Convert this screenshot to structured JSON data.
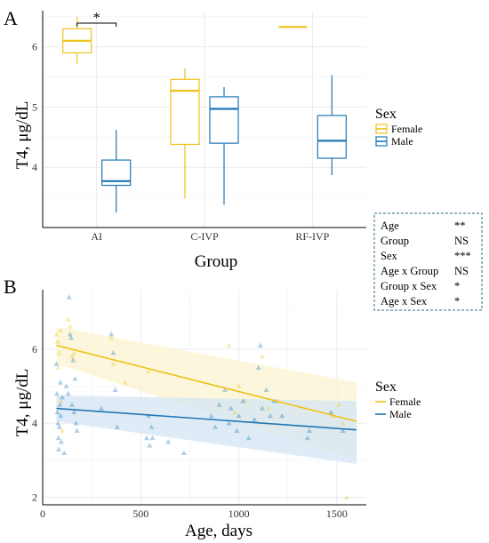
{
  "colors": {
    "female": "#EFC21B",
    "male": "#1F77B4",
    "grid": "#EBEBEB",
    "ci_female": "#FBF4D0",
    "ci_male": "#D4E6F4",
    "stats_border": "#2E6E8A"
  },
  "chart_data": [
    {
      "type": "box",
      "panel": "A",
      "xlabel": "Group",
      "ylabel": "T4, μg/dL",
      "categories": [
        "AI",
        "C-IVP",
        "RF-IVP"
      ],
      "ylim": [
        3.0,
        6.6
      ],
      "yticks": [
        "4",
        "5",
        "6"
      ],
      "legend": {
        "title": "Sex",
        "position": "right",
        "entries": [
          "Female",
          "Male"
        ]
      },
      "series": [
        {
          "name": "Female",
          "boxes": [
            {
              "category": "AI",
              "min": 5.72,
              "q1": 5.9,
              "median": 6.1,
              "q3": 6.3,
              "max": 6.5
            },
            {
              "category": "C-IVP",
              "min": 3.48,
              "q1": 4.38,
              "median": 5.27,
              "q3": 5.46,
              "max": 5.64
            },
            {
              "category": "RF-IVP",
              "min": 6.33,
              "q1": 6.33,
              "median": 6.33,
              "q3": 6.33,
              "max": 6.33
            }
          ]
        },
        {
          "name": "Male",
          "boxes": [
            {
              "category": "AI",
              "min": 3.25,
              "q1": 3.7,
              "median": 3.77,
              "q3": 4.12,
              "max": 4.62
            },
            {
              "category": "C-IVP",
              "min": 3.38,
              "q1": 4.4,
              "median": 4.97,
              "q3": 5.17,
              "max": 5.33
            },
            {
              "category": "RF-IVP",
              "min": 3.87,
              "q1": 4.15,
              "median": 4.44,
              "q3": 4.86,
              "max": 5.53
            }
          ]
        }
      ],
      "annotations": [
        {
          "text": "*",
          "between": "AI Female vs AI Male"
        }
      ]
    },
    {
      "type": "scatter",
      "panel": "B",
      "xlabel": "Age, days",
      "ylabel": "T4, μg/dL",
      "xlim": [
        0,
        1650
      ],
      "ylim": [
        1.8,
        7.6
      ],
      "xticks": [
        "0",
        "500",
        "1000",
        "1500"
      ],
      "yticks": [
        "2",
        "4",
        "6"
      ],
      "legend": {
        "title": "Sex",
        "position": "right",
        "entries": [
          "Female",
          "Male"
        ]
      },
      "trend": [
        {
          "name": "Female",
          "x": [
            70,
            1600
          ],
          "y": [
            6.1,
            4.05
          ],
          "ci_upper": [
            6.6,
            5.1
          ],
          "ci_lower": [
            5.6,
            3.0
          ]
        },
        {
          "name": "Male",
          "x": [
            70,
            1600
          ],
          "y": [
            4.4,
            3.82
          ],
          "ci_upper": [
            4.75,
            4.6
          ],
          "ci_lower": [
            4.05,
            2.9
          ]
        }
      ],
      "series": [
        {
          "name": "Female",
          "points": [
            [
              70,
              6.4
            ],
            [
              75,
              6.2
            ],
            [
              80,
              5.5
            ],
            [
              85,
              5.9
            ],
            [
              90,
              6.5
            ],
            [
              95,
              4.6
            ],
            [
              100,
              3.8
            ],
            [
              130,
              6.8
            ],
            [
              140,
              6.6
            ],
            [
              150,
              5.8
            ],
            [
              160,
              5.9
            ],
            [
              350,
              6.3
            ],
            [
              360,
              5.6
            ],
            [
              420,
              5.1
            ],
            [
              540,
              5.4
            ],
            [
              950,
              6.1
            ],
            [
              980,
              4.3
            ],
            [
              1000,
              5.0
            ],
            [
              1030,
              4.6
            ],
            [
              1120,
              5.8
            ],
            [
              1150,
              4.4
            ],
            [
              1200,
              4.6
            ],
            [
              1480,
              4.2
            ],
            [
              1510,
              4.5
            ],
            [
              1530,
              4.0
            ],
            [
              1550,
              2.0
            ]
          ]
        },
        {
          "name": "Male",
          "points": [
            [
              70,
              5.6
            ],
            [
              72,
              4.8
            ],
            [
              75,
              4.3
            ],
            [
              78,
              4.0
            ],
            [
              80,
              3.6
            ],
            [
              82,
              3.3
            ],
            [
              85,
              3.9
            ],
            [
              88,
              4.5
            ],
            [
              90,
              5.1
            ],
            [
              92,
              4.2
            ],
            [
              95,
              3.5
            ],
            [
              100,
              4.7
            ],
            [
              110,
              3.2
            ],
            [
              120,
              5.0
            ],
            [
              130,
              4.8
            ],
            [
              135,
              7.4
            ],
            [
              140,
              6.4
            ],
            [
              145,
              6.3
            ],
            [
              150,
              4.5
            ],
            [
              155,
              5.7
            ],
            [
              160,
              4.3
            ],
            [
              165,
              5.2
            ],
            [
              170,
              4.0
            ],
            [
              175,
              3.8
            ],
            [
              300,
              4.4
            ],
            [
              350,
              6.4
            ],
            [
              360,
              5.9
            ],
            [
              370,
              4.9
            ],
            [
              380,
              3.9
            ],
            [
              530,
              3.6
            ],
            [
              540,
              4.2
            ],
            [
              545,
              3.4
            ],
            [
              555,
              3.9
            ],
            [
              560,
              3.6
            ],
            [
              640,
              3.5
            ],
            [
              720,
              3.2
            ],
            [
              860,
              4.2
            ],
            [
              880,
              3.9
            ],
            [
              900,
              4.5
            ],
            [
              930,
              4.9
            ],
            [
              950,
              4.0
            ],
            [
              960,
              4.4
            ],
            [
              990,
              3.8
            ],
            [
              1000,
              4.2
            ],
            [
              1020,
              4.6
            ],
            [
              1050,
              3.6
            ],
            [
              1080,
              4.1
            ],
            [
              1100,
              5.5
            ],
            [
              1110,
              6.1
            ],
            [
              1120,
              4.4
            ],
            [
              1140,
              4.9
            ],
            [
              1160,
              4.2
            ],
            [
              1180,
              4.6
            ],
            [
              1220,
              4.2
            ],
            [
              1350,
              3.6
            ],
            [
              1360,
              3.8
            ],
            [
              1470,
              4.3
            ],
            [
              1530,
              3.8
            ]
          ]
        }
      ]
    }
  ],
  "panel_labels": {
    "a": "A",
    "b": "B"
  },
  "stats_table": {
    "rows": [
      {
        "term": "Age",
        "sig": "**"
      },
      {
        "term": "Group",
        "sig": "NS"
      },
      {
        "term": "Sex",
        "sig": "***"
      },
      {
        "term": "Age x Group",
        "sig": "NS"
      },
      {
        "term": "Group x Sex",
        "sig": "*"
      },
      {
        "term": "Age x Sex",
        "sig": "*"
      }
    ]
  }
}
